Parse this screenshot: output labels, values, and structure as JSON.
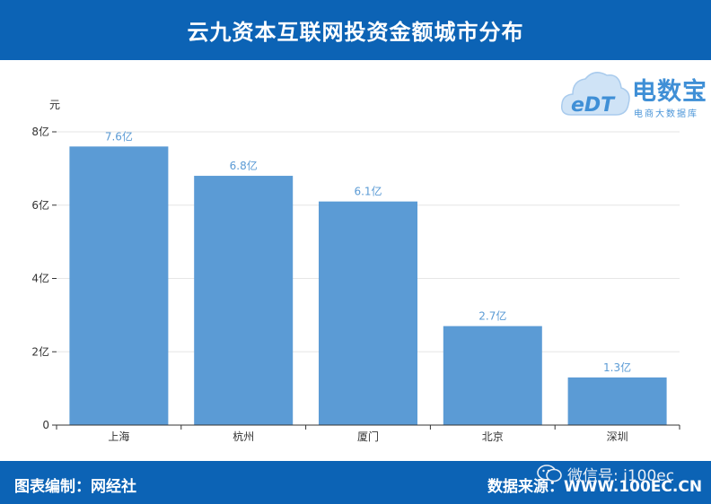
{
  "header": {
    "title": "云九资本互联网投资金额城市分布"
  },
  "logo": {
    "brand": "电数宝",
    "subtitle": "电商大数据库",
    "mark": "eDT"
  },
  "chart_data": {
    "type": "bar",
    "ylabel": "元",
    "categories": [
      "上海",
      "杭州",
      "厦门",
      "北京",
      "深圳"
    ],
    "values": [
      7.6,
      6.8,
      6.1,
      2.7,
      1.3
    ],
    "data_labels": [
      "7.6亿",
      "6.8亿",
      "6.1亿",
      "2.7亿",
      "1.3亿"
    ],
    "ylim": [
      0,
      8
    ],
    "yticks": [
      0,
      2,
      4,
      6,
      8
    ],
    "ytick_labels": [
      "0",
      "2亿",
      "4亿",
      "6亿",
      "8亿"
    ],
    "bar_color": "#5b9bd5",
    "label_color": "#5b9bd5",
    "grid": true
  },
  "footer": {
    "editor": "图表编制：网经社",
    "source": "数据来源：WWW.100EC.CN",
    "wechat": "微信号: i100ec"
  },
  "colors": {
    "brand": "#0c63b5",
    "bar": "#5b9bd5"
  }
}
